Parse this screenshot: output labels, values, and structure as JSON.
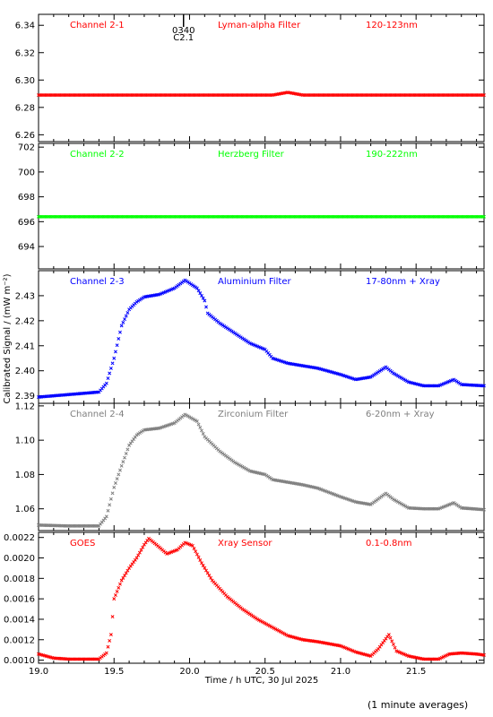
{
  "chart_data": {
    "type": "scatter",
    "xlabel": "Time / h UTC, 30 Jul 2025",
    "ylabel": "Calibrated Signal / (mW m⁻²)",
    "xlim": [
      19.0,
      21.95
    ],
    "xticks": [
      19.0,
      19.5,
      20.0,
      20.5,
      21.0,
      21.5
    ],
    "xtick_labels": [
      "19.0",
      "19.5",
      "20.0",
      "20.5",
      "21.0",
      "21.5"
    ],
    "marker": {
      "label_top": "0340",
      "label_bottom": "C2.1",
      "x": 19.96
    },
    "panels": [
      {
        "channel": "Channel 2-1",
        "filter": "Lyman-alpha Filter",
        "band": "120-123nm",
        "color": "#ff0000",
        "ylim": [
          6.255,
          6.348
        ],
        "yticks": [
          6.26,
          6.28,
          6.3,
          6.32,
          6.34
        ],
        "ytick_labels": [
          "6.26",
          "6.28",
          "6.30",
          "6.32",
          "6.34"
        ],
        "x": [
          19.0,
          20.55,
          20.65,
          20.75,
          21.95
        ],
        "y": [
          6.289,
          6.289,
          6.291,
          6.289,
          6.289
        ]
      },
      {
        "channel": "Channel 2-2",
        "filter": "Herzberg Filter",
        "band": "190-222nm",
        "color": "#00ff00",
        "ylim": [
          692.2,
          702.3
        ],
        "yticks": [
          694,
          696,
          698,
          700,
          702
        ],
        "ytick_labels": [
          "694",
          "696",
          "698",
          "700",
          "702"
        ],
        "x": [
          19.0,
          21.95
        ],
        "y": [
          696.4,
          696.4
        ]
      },
      {
        "channel": "Channel 2-3",
        "filter": "Aluminium Filter",
        "band": "17-80nm + Xray",
        "color": "#0000ff",
        "ylim": [
          2.387,
          2.44
        ],
        "yticks": [
          2.39,
          2.4,
          2.41,
          2.42,
          2.43
        ],
        "ytick_labels": [
          "2.39",
          "2.40",
          "2.41",
          "2.42",
          "2.43"
        ],
        "x": [
          19.0,
          19.2,
          19.4,
          19.45,
          19.5,
          19.55,
          19.6,
          19.65,
          19.7,
          19.8,
          19.9,
          19.97,
          20.05,
          20.1,
          20.12,
          20.2,
          20.3,
          20.4,
          20.5,
          20.55,
          20.65,
          20.75,
          20.85,
          21.0,
          21.1,
          21.2,
          21.3,
          21.35,
          21.45,
          21.55,
          21.65,
          21.75,
          21.8,
          21.95
        ],
        "y": [
          2.3895,
          2.3905,
          2.3915,
          2.395,
          2.405,
          2.418,
          2.4245,
          2.4275,
          2.4295,
          2.4305,
          2.433,
          2.4362,
          2.433,
          2.428,
          2.423,
          2.419,
          2.415,
          2.411,
          2.4085,
          2.405,
          2.403,
          2.402,
          2.401,
          2.3985,
          2.3965,
          2.3975,
          2.4015,
          2.399,
          2.3955,
          2.394,
          2.394,
          2.3965,
          2.3945,
          2.394
        ]
      },
      {
        "channel": "Channel 2-4",
        "filter": "Zirconium Filter",
        "band": "6-20nm + Xray",
        "color": "#7f7f7f",
        "ylim": [
          1.0473,
          1.1215
        ],
        "yticks": [
          1.06,
          1.08,
          1.1,
          1.12
        ],
        "ytick_labels": [
          "1.06",
          "1.08",
          "1.10",
          "1.12"
        ],
        "x": [
          19.0,
          19.2,
          19.4,
          19.45,
          19.5,
          19.55,
          19.6,
          19.65,
          19.7,
          19.8,
          19.9,
          19.97,
          20.05,
          20.1,
          20.2,
          20.3,
          20.4,
          20.5,
          20.55,
          20.65,
          20.75,
          20.85,
          21.0,
          21.1,
          21.2,
          21.3,
          21.35,
          21.45,
          21.55,
          21.65,
          21.75,
          21.8,
          21.95
        ],
        "y": [
          1.0505,
          1.05,
          1.05,
          1.0555,
          1.0725,
          1.085,
          1.097,
          1.103,
          1.106,
          1.107,
          1.11,
          1.115,
          1.111,
          1.102,
          1.0935,
          1.087,
          1.082,
          1.08,
          1.077,
          1.0755,
          1.074,
          1.072,
          1.067,
          1.064,
          1.0625,
          1.069,
          1.0655,
          1.0605,
          1.06,
          1.06,
          1.0635,
          1.0605,
          1.0595
        ]
      },
      {
        "channel": "GOES",
        "filter": "Xray Sensor",
        "band": "0.1-0.8nm",
        "color": "#ff0000",
        "ylim": [
          0.00097,
          0.00225
        ],
        "yticks": [
          0.001,
          0.0012,
          0.0014,
          0.0016,
          0.0018,
          0.002,
          0.0022
        ],
        "ytick_labels": [
          "0.0010",
          "0.0012",
          "0.0014",
          "0.0016",
          "0.0018",
          "0.0020",
          "0.0022"
        ],
        "x": [
          19.0,
          19.1,
          19.2,
          19.4,
          19.45,
          19.48,
          19.5,
          19.55,
          19.6,
          19.65,
          19.7,
          19.73,
          19.78,
          19.85,
          19.92,
          19.97,
          20.02,
          20.08,
          20.15,
          20.25,
          20.35,
          20.45,
          20.55,
          20.65,
          20.75,
          20.85,
          21.0,
          21.1,
          21.2,
          21.25,
          21.32,
          21.37,
          21.45,
          21.55,
          21.65,
          21.72,
          21.8,
          21.9,
          21.95
        ],
        "y": [
          0.00106,
          0.00102,
          0.00101,
          0.00101,
          0.00107,
          0.00125,
          0.0016,
          0.00178,
          0.0019,
          0.002,
          0.00213,
          0.00219,
          0.00213,
          0.00204,
          0.00208,
          0.00215,
          0.00212,
          0.00195,
          0.00178,
          0.00162,
          0.0015,
          0.0014,
          0.00132,
          0.00124,
          0.0012,
          0.00118,
          0.00114,
          0.00108,
          0.00104,
          0.00111,
          0.00125,
          0.00109,
          0.00104,
          0.00101,
          0.00101,
          0.00106,
          0.00107,
          0.00106,
          0.00105
        ]
      }
    ],
    "footnote": "(1 minute averages)"
  }
}
